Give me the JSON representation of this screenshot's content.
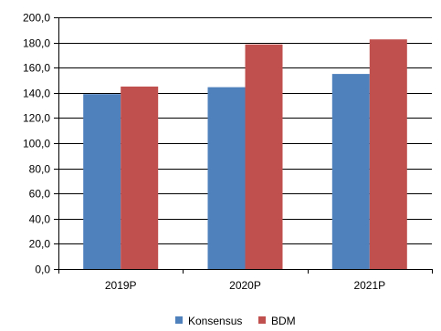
{
  "chart_data": {
    "type": "bar",
    "title": "",
    "xlabel": "",
    "ylabel": "",
    "categories": [
      "2019P",
      "2020P",
      "2021P"
    ],
    "series": [
      {
        "name": "Konsensus",
        "values": [
          139.0,
          144.5,
          155.0
        ],
        "color": "#4F81BD"
      },
      {
        "name": "BDM",
        "values": [
          145.0,
          178.5,
          182.5
        ],
        "color": "#C0504D"
      }
    ],
    "ylim": [
      0,
      200
    ],
    "y_ticks": [
      "0,0",
      "20,0",
      "40,0",
      "60,0",
      "80,0",
      "100,0",
      "120,0",
      "140,0",
      "160,0",
      "180,0",
      "200,0"
    ],
    "y_tick_values": [
      0,
      20,
      40,
      60,
      80,
      100,
      120,
      140,
      160,
      180,
      200
    ],
    "grid": true,
    "legend_position": "bottom"
  }
}
